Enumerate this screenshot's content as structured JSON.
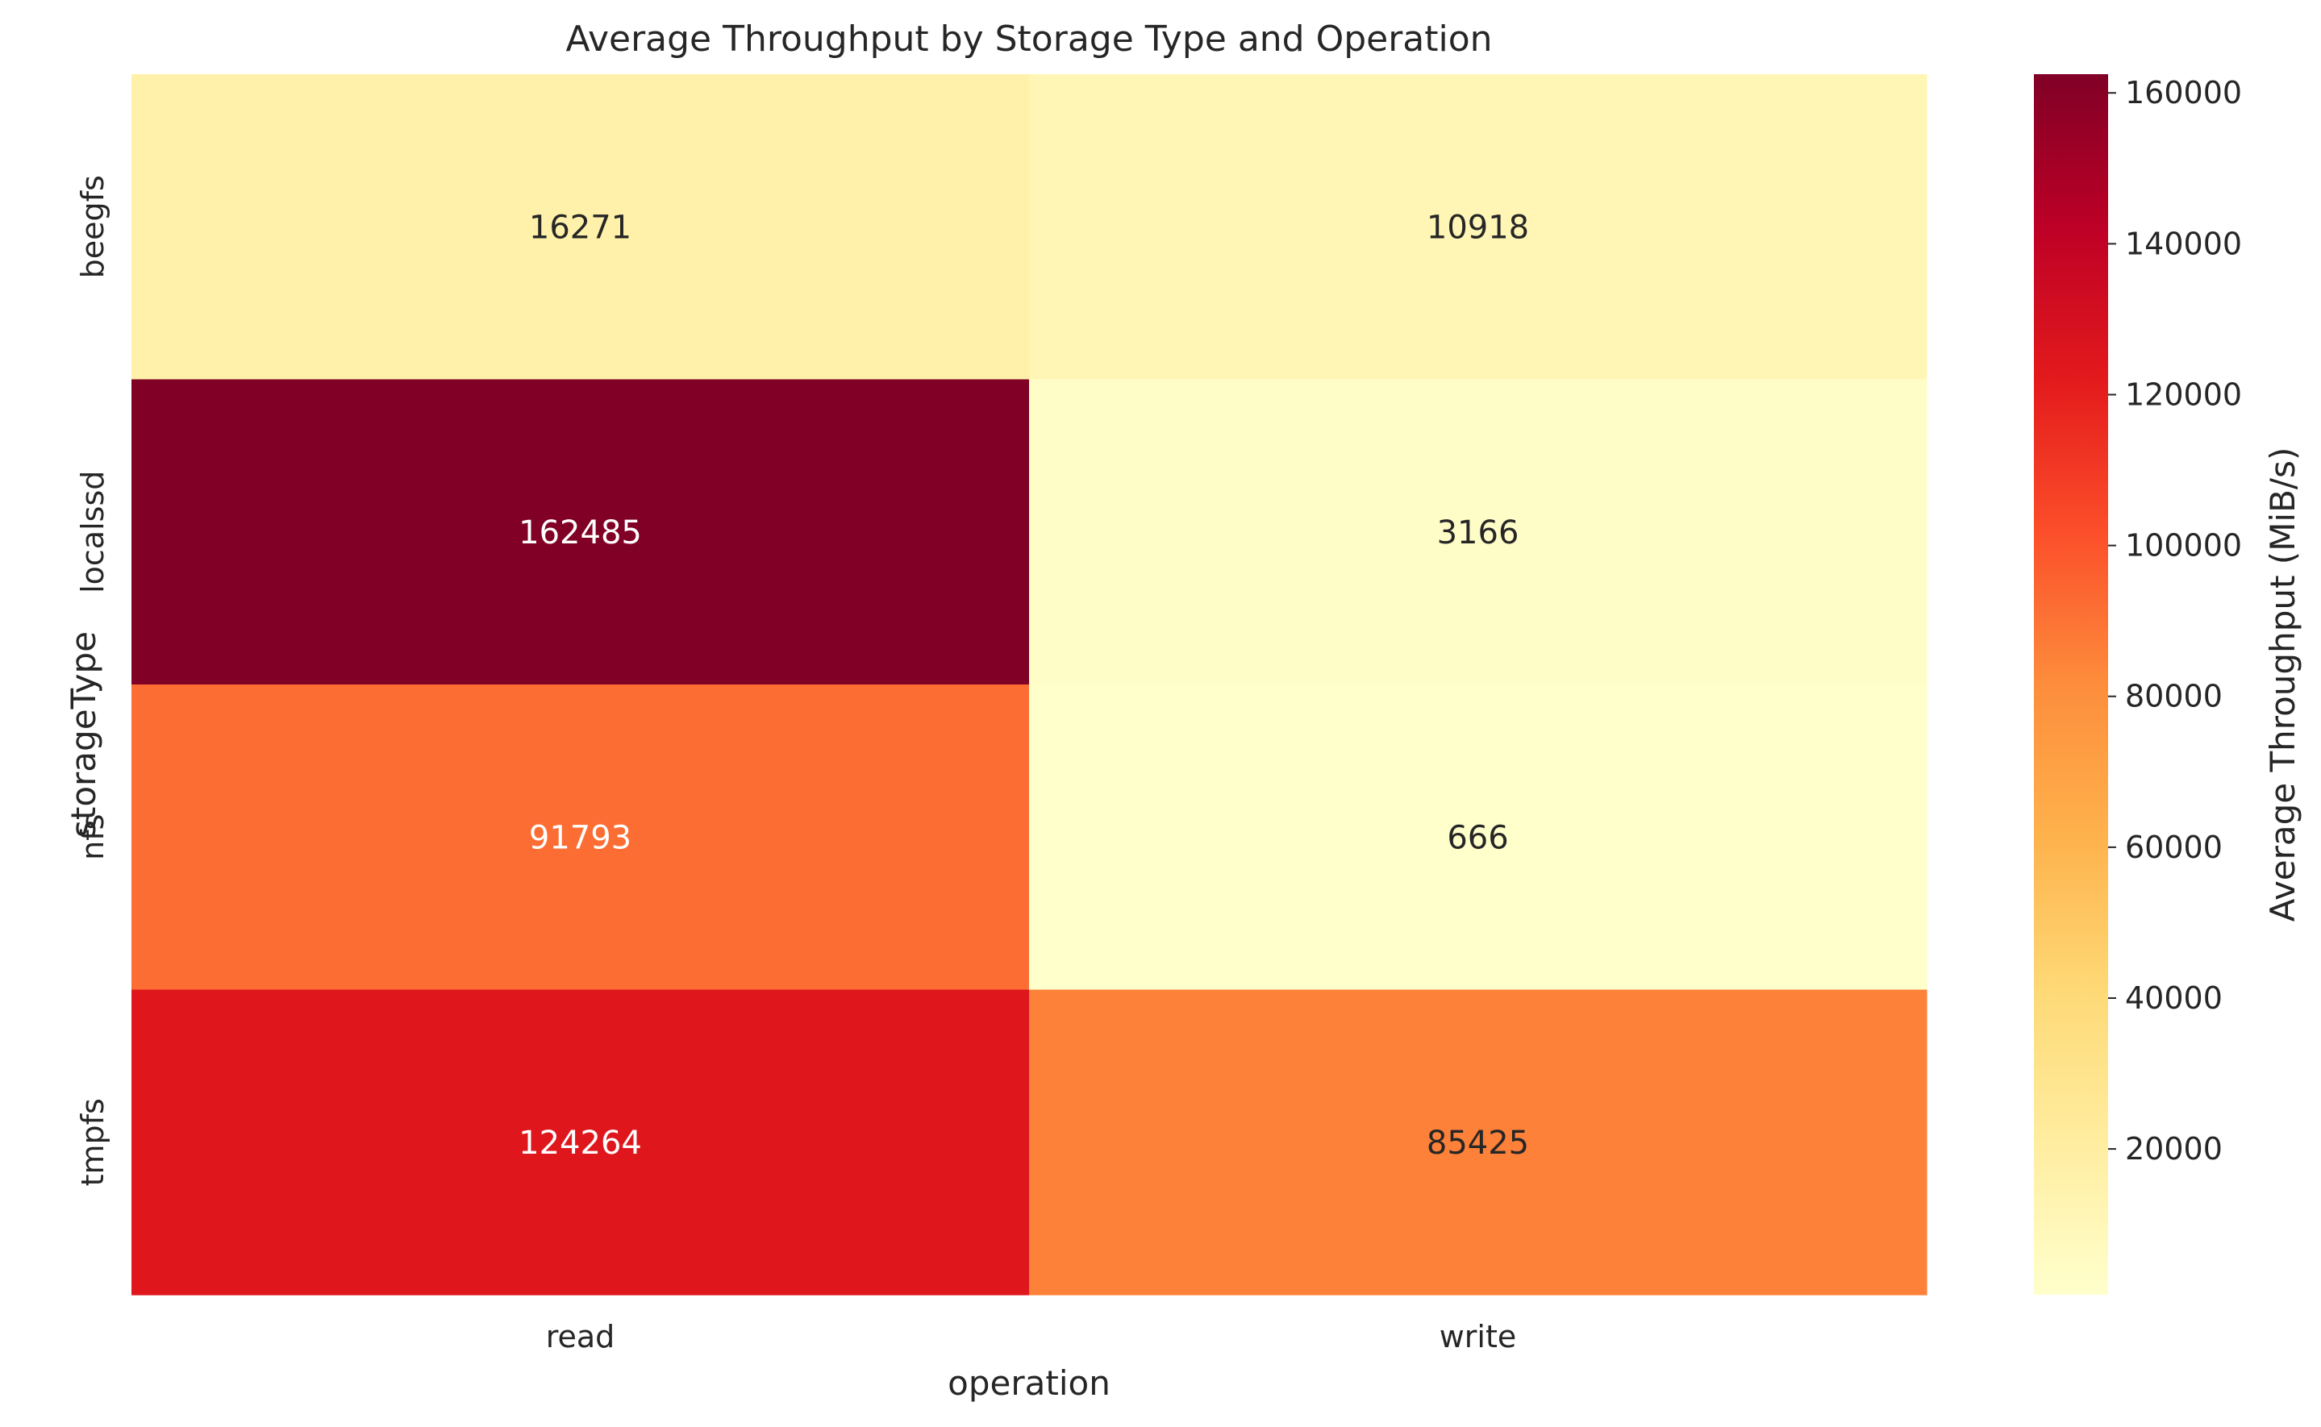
{
  "chart_data": {
    "type": "heatmap",
    "title": "Average Throughput by Storage Type and Operation",
    "xlabel": "operation",
    "ylabel": "storageType",
    "x_categories": [
      "read",
      "write"
    ],
    "y_categories": [
      "beegfs",
      "localssd",
      "nfs",
      "tmpfs"
    ],
    "values": [
      [
        16271,
        10918
      ],
      [
        162485,
        3166
      ],
      [
        91793,
        666
      ],
      [
        124264,
        85425
      ]
    ],
    "colorbar": {
      "label": "Average Throughput (MiB/s)",
      "ticks": [
        20000,
        40000,
        60000,
        80000,
        100000,
        120000,
        140000,
        160000
      ],
      "vmin": 666,
      "vmax": 162485,
      "colormap": "YlOrRd"
    },
    "colors": {
      "text_dark": "#262626",
      "text_light": "#ffffff"
    }
  }
}
